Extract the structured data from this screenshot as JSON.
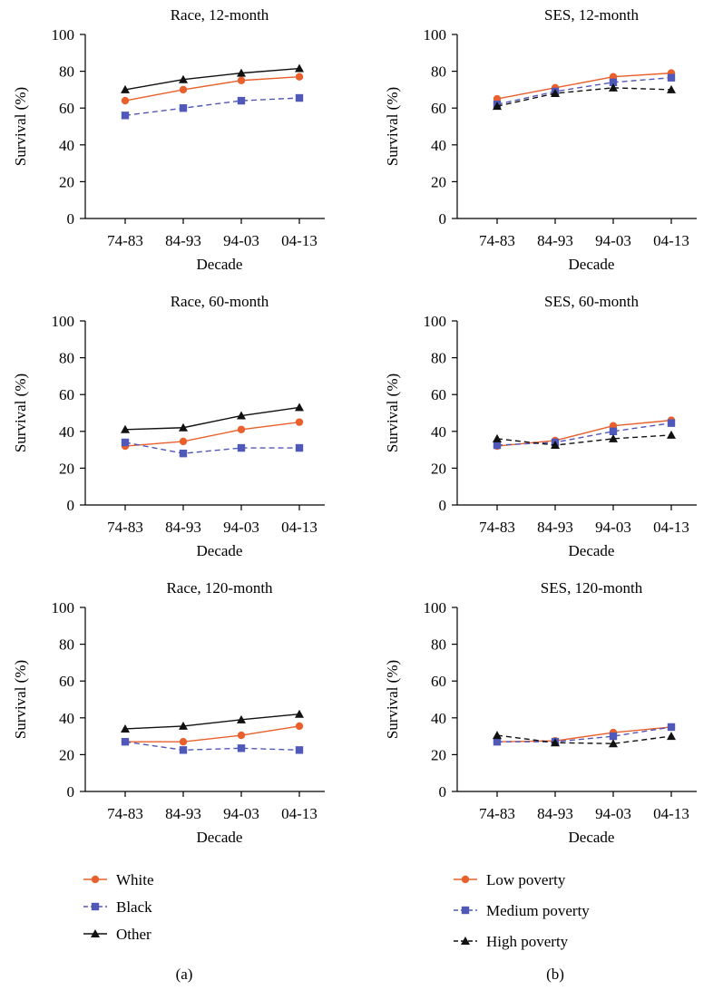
{
  "colors": {
    "White": "#e8602c",
    "Black": "#5058b8",
    "Other": "#111111",
    "Low poverty": "#e8602c",
    "Medium poverty": "#5058b8",
    "High poverty": "#111111"
  },
  "legends": {
    "a": {
      "items": [
        "White",
        "Black",
        "Other"
      ],
      "caption": "(a)"
    },
    "b": {
      "items": [
        "Low poverty",
        "Medium poverty",
        "High poverty"
      ],
      "caption": "(b)"
    }
  },
  "chart_data": [
    {
      "type": "line",
      "title": "Race, 12-month",
      "xlabel": "Decade",
      "ylabel": "Survival (%)",
      "categories": [
        "74-83",
        "84-93",
        "94-03",
        "04-13"
      ],
      "ylim": [
        0,
        100
      ],
      "yticks": [
        0,
        20,
        40,
        60,
        80,
        100
      ],
      "series": [
        {
          "name": "White",
          "marker": "circle",
          "dash": false,
          "values": [
            64,
            70,
            75,
            77
          ]
        },
        {
          "name": "Black",
          "marker": "square",
          "dash": true,
          "values": [
            56,
            60,
            64,
            65.5
          ]
        },
        {
          "name": "Other",
          "marker": "triangle",
          "dash": false,
          "values": [
            70,
            75.5,
            79,
            81.5
          ]
        }
      ]
    },
    {
      "type": "line",
      "title": "SES, 12-month",
      "xlabel": "Decade",
      "ylabel": "Survival (%)",
      "categories": [
        "74-83",
        "84-93",
        "94-03",
        "04-13"
      ],
      "ylim": [
        0,
        100
      ],
      "yticks": [
        0,
        20,
        40,
        60,
        80,
        100
      ],
      "series": [
        {
          "name": "Low poverty",
          "marker": "circle",
          "dash": false,
          "values": [
            65,
            71,
            77,
            79
          ]
        },
        {
          "name": "Medium poverty",
          "marker": "square",
          "dash": true,
          "values": [
            62,
            69,
            74,
            76.5
          ]
        },
        {
          "name": "High poverty",
          "marker": "triangle",
          "dash": true,
          "values": [
            61,
            68,
            71,
            70
          ]
        }
      ]
    },
    {
      "type": "line",
      "title": "Race, 60-month",
      "xlabel": "Decade",
      "ylabel": "Survival (%)",
      "categories": [
        "74-83",
        "84-93",
        "94-03",
        "04-13"
      ],
      "ylim": [
        0,
        100
      ],
      "yticks": [
        0,
        20,
        40,
        60,
        80,
        100
      ],
      "series": [
        {
          "name": "White",
          "marker": "circle",
          "dash": false,
          "values": [
            32,
            34.5,
            41,
            45
          ]
        },
        {
          "name": "Black",
          "marker": "square",
          "dash": true,
          "values": [
            34,
            28,
            31,
            31
          ]
        },
        {
          "name": "Other",
          "marker": "triangle",
          "dash": false,
          "values": [
            41,
            42,
            48.5,
            53
          ]
        }
      ]
    },
    {
      "type": "line",
      "title": "SES, 60-month",
      "xlabel": "Decade",
      "ylabel": "Survival (%)",
      "categories": [
        "74-83",
        "84-93",
        "94-03",
        "04-13"
      ],
      "ylim": [
        0,
        100
      ],
      "yticks": [
        0,
        20,
        40,
        60,
        80,
        100
      ],
      "series": [
        {
          "name": "Low poverty",
          "marker": "circle",
          "dash": false,
          "values": [
            32,
            35,
            43,
            46
          ]
        },
        {
          "name": "Medium poverty",
          "marker": "square",
          "dash": true,
          "values": [
            32.5,
            34,
            40,
            44.5
          ]
        },
        {
          "name": "High poverty",
          "marker": "triangle",
          "dash": true,
          "values": [
            36,
            32.5,
            36,
            38
          ]
        }
      ]
    },
    {
      "type": "line",
      "title": "Race, 120-month",
      "xlabel": "Decade",
      "ylabel": "Survival (%)",
      "categories": [
        "74-83",
        "84-93",
        "94-03",
        "04-13"
      ],
      "ylim": [
        0,
        100
      ],
      "yticks": [
        0,
        20,
        40,
        60,
        80,
        100
      ],
      "series": [
        {
          "name": "White",
          "marker": "circle",
          "dash": false,
          "values": [
            27,
            27,
            30.5,
            35.5
          ]
        },
        {
          "name": "Black",
          "marker": "square",
          "dash": true,
          "values": [
            27,
            22.5,
            23.5,
            22.5
          ]
        },
        {
          "name": "Other",
          "marker": "triangle",
          "dash": false,
          "values": [
            34,
            35.5,
            39,
            42
          ]
        }
      ]
    },
    {
      "type": "line",
      "title": "SES, 120-month",
      "xlabel": "Decade",
      "ylabel": "Survival (%)",
      "categories": [
        "74-83",
        "84-93",
        "94-03",
        "04-13"
      ],
      "ylim": [
        0,
        100
      ],
      "yticks": [
        0,
        20,
        40,
        60,
        80,
        100
      ],
      "series": [
        {
          "name": "Low poverty",
          "marker": "circle",
          "dash": false,
          "values": [
            27,
            27.5,
            32,
            35
          ]
        },
        {
          "name": "Medium poverty",
          "marker": "square",
          "dash": true,
          "values": [
            27,
            27,
            30,
            35
          ]
        },
        {
          "name": "High poverty",
          "marker": "triangle",
          "dash": true,
          "values": [
            30.5,
            26.5,
            26,
            30
          ]
        }
      ]
    }
  ]
}
